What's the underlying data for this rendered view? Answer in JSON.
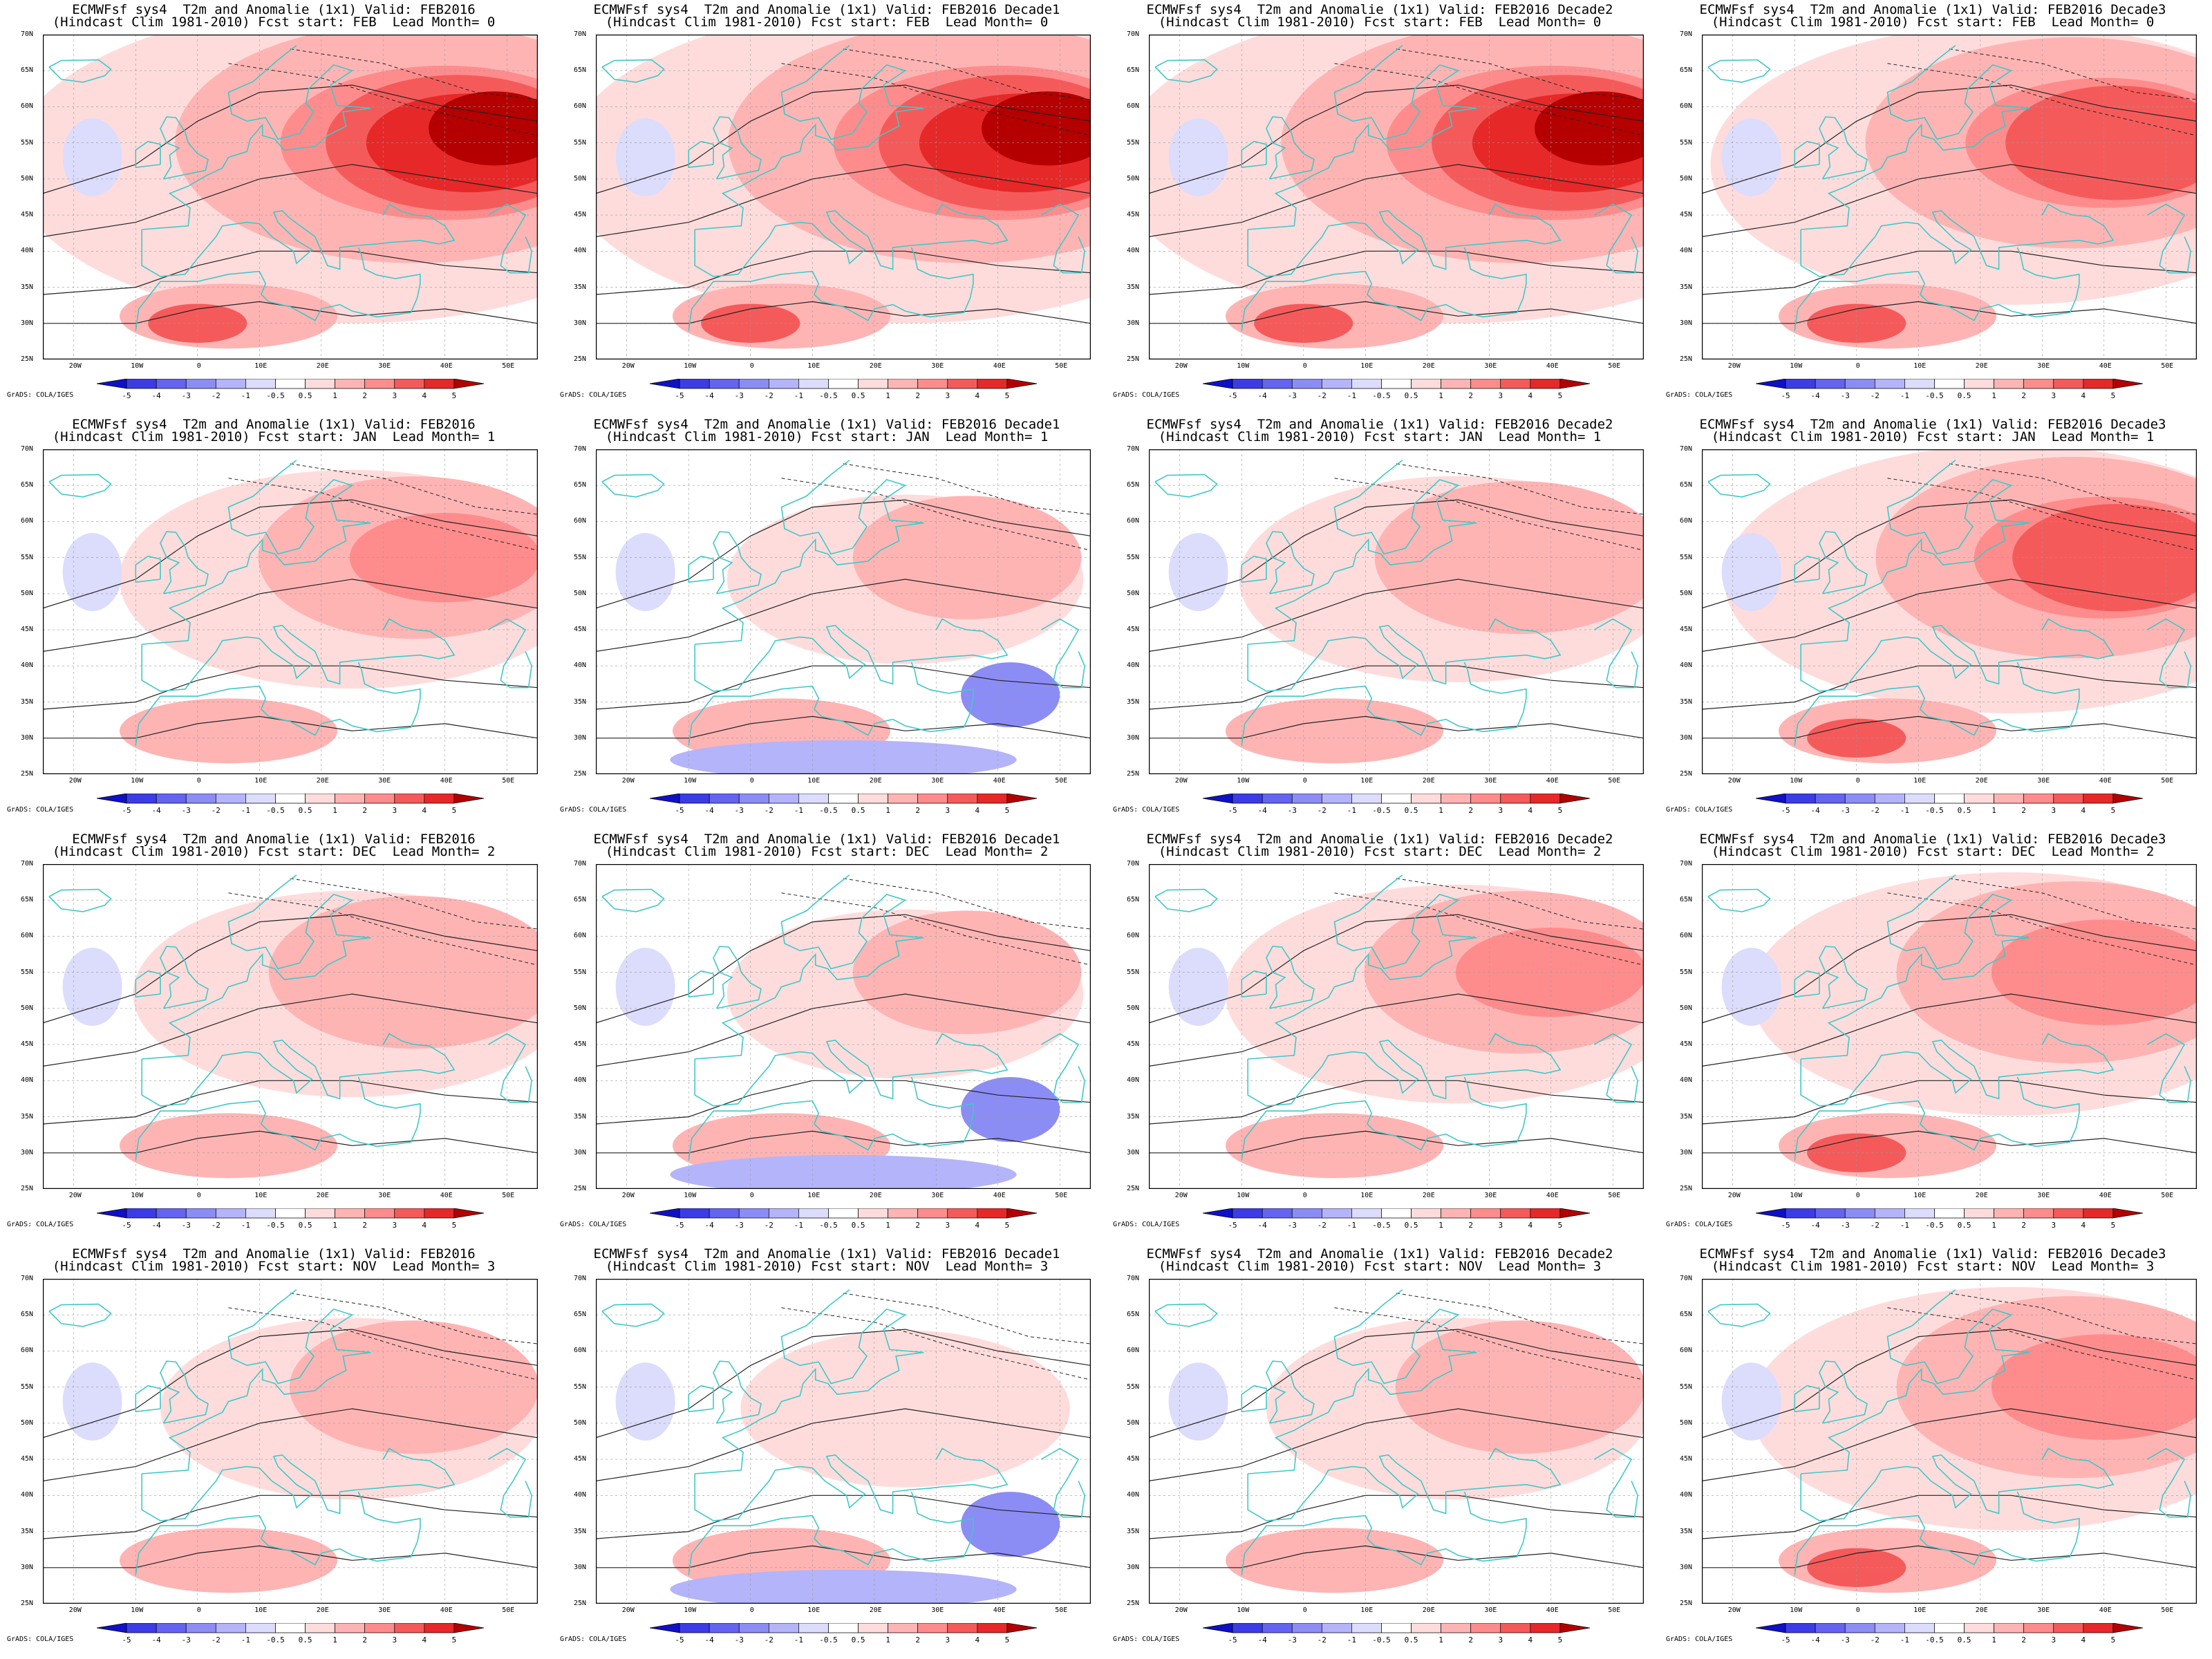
{
  "panels": [
    {
      "t1": "ECMWFsf sys4  T2m and Anomalie (1x1) Valid: FEB2016",
      "t2": "(Hindcast Clim 1981-2010) Fcst start: FEB  Lead Month= 0",
      "warm": 0.95
    },
    {
      "t1": "ECMWFsf sys4  T2m and Anomalie (1x1) Valid: FEB2016 Decade1",
      "t2": "(Hindcast Clim 1981-2010) Fcst start: FEB  Lead Month= 0",
      "warm": 0.95
    },
    {
      "t1": "ECMWFsf sys4  T2m and Anomalie (1x1) Valid: FEB2016 Decade2",
      "t2": "(Hindcast Clim 1981-2010) Fcst start: FEB  Lead Month= 0",
      "warm": 0.95
    },
    {
      "t1": "ECMWFsf sys4  T2m and Anomalie (1x1) Valid: FEB2016 Decade3",
      "t2": "(Hindcast Clim 1981-2010) Fcst start: FEB  Lead Month= 0",
      "warm": 0.8
    },
    {
      "t1": "ECMWFsf sys4  T2m and Anomalie (1x1) Valid: FEB2016",
      "t2": "(Hindcast Clim 1981-2010) Fcst start: JAN  Lead Month= 1",
      "warm": 0.55
    },
    {
      "t1": "ECMWFsf sys4  T2m and Anomalie (1x1) Valid: FEB2016 Decade1",
      "t2": "(Hindcast Clim 1981-2010) Fcst start: JAN  Lead Month= 1",
      "warm": 0.35
    },
    {
      "t1": "ECMWFsf sys4  T2m and Anomalie (1x1) Valid: FEB2016 Decade2",
      "t2": "(Hindcast Clim 1981-2010) Fcst start: JAN  Lead Month= 1",
      "warm": 0.5
    },
    {
      "t1": "ECMWFsf sys4  T2m and Anomalie (1x1) Valid: FEB2016 Decade3",
      "t2": "(Hindcast Clim 1981-2010) Fcst start: JAN  Lead Month= 1",
      "warm": 0.75
    },
    {
      "t1": "ECMWFsf sys4  T2m and Anomalie (1x1) Valid: FEB2016",
      "t2": "(Hindcast Clim 1981-2010) Fcst start: DEC  Lead Month= 2",
      "warm": 0.5
    },
    {
      "t1": "ECMWFsf sys4  T2m and Anomalie (1x1) Valid: FEB2016 Decade1",
      "t2": "(Hindcast Clim 1981-2010) Fcst start: DEC  Lead Month= 2",
      "warm": 0.35
    },
    {
      "t1": "ECMWFsf sys4  T2m and Anomalie (1x1) Valid: FEB2016 Decade2",
      "t2": "(Hindcast Clim 1981-2010) Fcst start: DEC  Lead Month= 2",
      "warm": 0.55
    },
    {
      "t1": "ECMWFsf sys4  T2m and Anomalie (1x1) Valid: FEB2016 Decade3",
      "t2": "(Hindcast Clim 1981-2010) Fcst start: DEC  Lead Month= 2",
      "warm": 0.65
    },
    {
      "t1": "ECMWFsf sys4  T2m and Anomalie (1x1) Valid: FEB2016",
      "t2": "(Hindcast Clim 1981-2010) Fcst start: NOV  Lead Month= 3",
      "warm": 0.4
    },
    {
      "t1": "ECMWFsf sys4  T2m and Anomalie (1x1) Valid: FEB2016 Decade1",
      "t2": "(Hindcast Clim 1981-2010) Fcst start: NOV  Lead Month= 3",
      "warm": 0.3
    },
    {
      "t1": "ECMWFsf sys4  T2m and Anomalie (1x1) Valid: FEB2016 Decade2",
      "t2": "(Hindcast Clim 1981-2010) Fcst start: NOV  Lead Month= 3",
      "warm": 0.4
    },
    {
      "t1": "ECMWFsf sys4  T2m and Anomalie (1x1) Valid: FEB2016 Decade3",
      "t2": "(Hindcast Clim 1981-2010) Fcst start: NOV  Lead Month= 3",
      "warm": 0.65
    }
  ],
  "lat_labels": [
    "70N",
    "65N",
    "60N",
    "55N",
    "50N",
    "45N",
    "40N",
    "35N",
    "30N",
    "25N"
  ],
  "lon_labels": [
    "20W",
    "10W",
    "0",
    "10E",
    "20E",
    "30E",
    "40E",
    "50E"
  ],
  "colorbar": {
    "labels": [
      "-5",
      "-4",
      "-3",
      "-2",
      "-1",
      "-0.5",
      "0.5",
      "1",
      "2",
      "3",
      "4",
      "5"
    ],
    "colors": [
      "#1010c8",
      "#3c3ce6",
      "#6464f0",
      "#8c8cf5",
      "#b4b4fa",
      "#dcdcfc",
      "#ffffff",
      "#ffdcdc",
      "#ffb4b4",
      "#ff8c8c",
      "#f55a5a",
      "#e62828",
      "#b40000"
    ]
  },
  "credit": "GrADS: COLA/IGES",
  "colors": {
    "coast": "#40c8c8",
    "contour": "#222222",
    "frame": "#000000"
  }
}
